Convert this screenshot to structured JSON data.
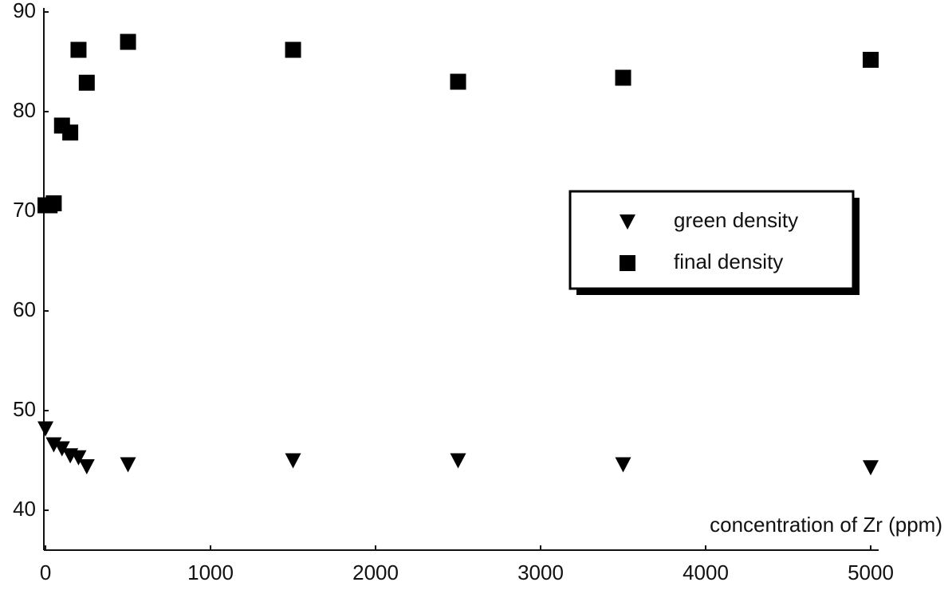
{
  "chart_data": {
    "type": "scatter",
    "x_label": "concentration of Zr (ppm)",
    "xlim": [
      -10,
      5000
    ],
    "xticks": [
      0,
      1000,
      2000,
      3000,
      4000,
      5000
    ],
    "ylim": [
      36,
      90
    ],
    "yticks": [
      40,
      50,
      60,
      70,
      80,
      90
    ],
    "legend": "right",
    "series": [
      {
        "name": "green density",
        "color": "#000000",
        "marker": "triangle-down",
        "x": [
          0,
          50,
          100,
          150,
          200,
          250,
          500,
          1500,
          2500,
          3500,
          5000
        ],
        "values": [
          48.2,
          46.6,
          46.2,
          45.5,
          45.3,
          44.4,
          44.6,
          45.0,
          45.0,
          44.6,
          44.3
        ]
      },
      {
        "name": "final density",
        "color": "#000000",
        "marker": "square",
        "x": [
          0,
          25,
          50,
          100,
          150,
          200,
          250,
          500,
          1500,
          2500,
          3500,
          5000
        ],
        "values": [
          70.6,
          70.6,
          70.8,
          78.6,
          77.9,
          86.2,
          82.9,
          87.0,
          86.2,
          83.0,
          83.4,
          85.2
        ]
      }
    ]
  }
}
